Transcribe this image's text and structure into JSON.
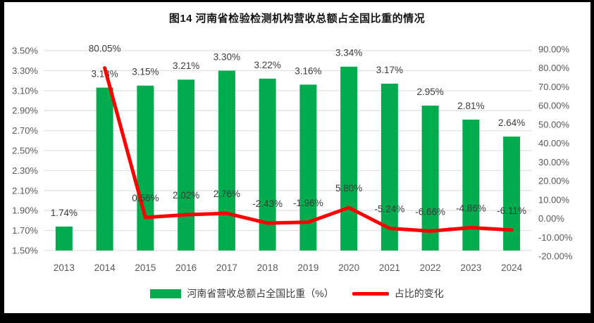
{
  "chart_data": {
    "type": "combo-bar-line",
    "title": "图14  河南省检验检测机构营收总额占全国比重的情况",
    "categories": [
      "2013",
      "2014",
      "2015",
      "2016",
      "2017",
      "2018",
      "2019",
      "2020",
      "2021",
      "2022",
      "2023",
      "2024"
    ],
    "series": [
      {
        "name": "河南省营收总额占全国比重（%）",
        "type": "bar",
        "axis": "left",
        "color": "#00AC4E",
        "values": [
          1.74,
          3.13,
          3.15,
          3.21,
          3.3,
          3.22,
          3.16,
          3.34,
          3.17,
          2.95,
          2.81,
          2.64
        ]
      },
      {
        "name": "占比的变化",
        "type": "line",
        "axis": "right",
        "color": "#FE0000",
        "values": [
          null,
          80.05,
          0.56,
          2.02,
          2.76,
          -2.43,
          -1.96,
          5.8,
          -5.24,
          -6.66,
          -4.86,
          -6.11
        ]
      }
    ],
    "axes": {
      "left": {
        "min": 1.5,
        "max": 3.5,
        "step": 0.2,
        "tick_format": "0.00%"
      },
      "right": {
        "min": -20,
        "max": 90,
        "step": 10,
        "tick_format": "0.00%"
      }
    },
    "gridlines": true,
    "legend_position": "bottom",
    "data_labels": true
  },
  "colors": {
    "grid": "#E2E2E2",
    "axis_text": "#595959",
    "label_text": "#3B3B3B",
    "title_text": "#141414",
    "frame": "#000000",
    "background": "#FFFFFF"
  }
}
